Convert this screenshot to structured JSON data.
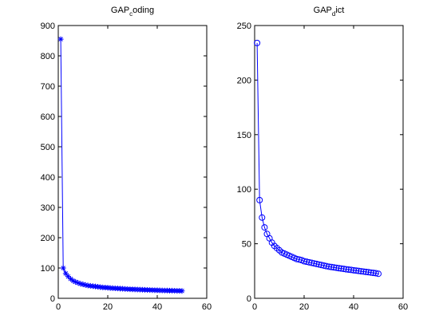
{
  "chart_data": [
    {
      "type": "line",
      "marker": "asterisk",
      "title": {
        "main": "GAP",
        "sub": "c",
        "rest": "oding"
      },
      "xlim": [
        0,
        60
      ],
      "ylim": [
        0,
        900
      ],
      "xticks": [
        0,
        20,
        40,
        60
      ],
      "yticks": [
        0,
        100,
        200,
        300,
        400,
        500,
        600,
        700,
        800,
        900
      ],
      "x": [
        1,
        2,
        3,
        4,
        5,
        6,
        7,
        8,
        9,
        10,
        11,
        12,
        13,
        14,
        15,
        16,
        17,
        18,
        19,
        20,
        21,
        22,
        23,
        24,
        25,
        26,
        27,
        28,
        29,
        30,
        31,
        32,
        33,
        34,
        35,
        36,
        37,
        38,
        39,
        40,
        41,
        42,
        43,
        44,
        45,
        46,
        47,
        48,
        49,
        50
      ],
      "y": [
        855,
        100,
        82,
        72,
        64,
        58,
        54,
        51,
        48,
        46,
        44,
        42,
        41,
        40,
        39,
        38,
        37,
        36,
        35.5,
        35,
        34,
        33.5,
        33,
        32.5,
        32,
        31.5,
        31,
        30.5,
        30,
        29.7,
        29.4,
        29,
        28.7,
        28.4,
        28,
        27.7,
        27.4,
        27.1,
        26.8,
        26.5,
        26.2,
        26,
        25.8,
        25.6,
        25.4,
        25.2,
        25,
        24.8,
        24.6,
        24.4
      ],
      "color": "#0000ff"
    },
    {
      "type": "line",
      "marker": "circle",
      "title": {
        "main": "GAP",
        "sub": "d",
        "rest": "ict"
      },
      "xlim": [
        0,
        60
      ],
      "ylim": [
        0,
        250
      ],
      "xticks": [
        0,
        20,
        40,
        60
      ],
      "yticks": [
        0,
        50,
        100,
        150,
        200,
        250
      ],
      "x": [
        1,
        2,
        3,
        4,
        5,
        6,
        7,
        8,
        9,
        10,
        11,
        12,
        13,
        14,
        15,
        16,
        17,
        18,
        19,
        20,
        21,
        22,
        23,
        24,
        25,
        26,
        27,
        28,
        29,
        30,
        31,
        32,
        33,
        34,
        35,
        36,
        37,
        38,
        39,
        40,
        41,
        42,
        43,
        44,
        45,
        46,
        47,
        48,
        49,
        50
      ],
      "y": [
        234,
        90,
        74,
        65,
        59,
        55,
        51,
        48,
        46,
        44,
        42,
        41,
        40,
        39,
        38,
        37,
        36,
        35.5,
        35,
        34,
        33.5,
        33,
        32.5,
        32,
        31.5,
        31,
        30.5,
        30,
        29.5,
        29,
        28.7,
        28.3,
        28,
        27.6,
        27.3,
        27,
        26.6,
        26.3,
        26,
        25.7,
        25.4,
        25.1,
        24.8,
        24.5,
        24.2,
        23.9,
        23.6,
        23.3,
        23,
        22.5
      ],
      "color": "#0000ff"
    }
  ]
}
